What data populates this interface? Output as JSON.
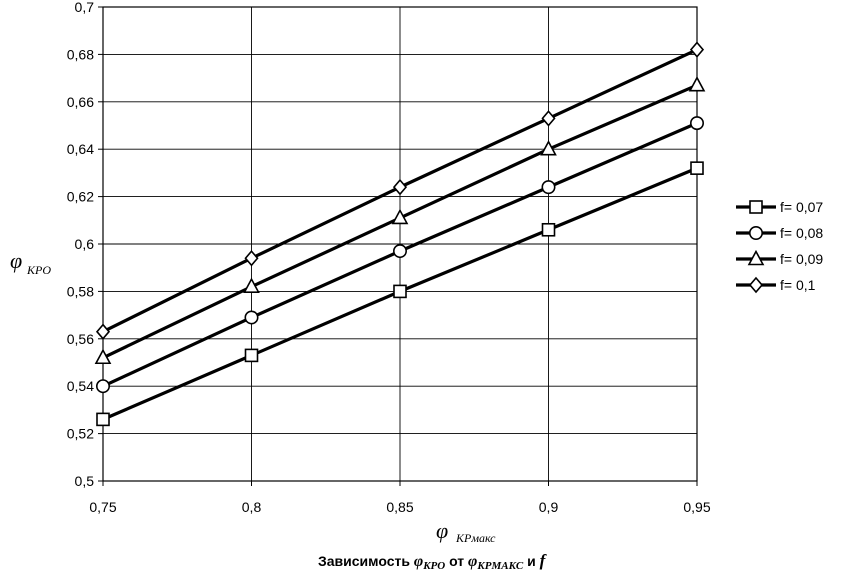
{
  "chart_data": {
    "type": "line",
    "x": [
      0.75,
      0.8,
      0.85,
      0.9,
      0.95
    ],
    "x_tick_labels": [
      "0,75",
      "0,8",
      "0,85",
      "0,9",
      "0,95"
    ],
    "y_tick_labels": [
      "0,5",
      "0,52",
      "0,54",
      "0,56",
      "0,58",
      "0,6",
      "0,62",
      "0,64",
      "0,66",
      "0,68",
      "0,7"
    ],
    "y_ticks": [
      0.5,
      0.52,
      0.54,
      0.56,
      0.58,
      0.6,
      0.62,
      0.64,
      0.66,
      0.68,
      0.7
    ],
    "xlim": [
      0.75,
      0.95
    ],
    "ylim": [
      0.5,
      0.7
    ],
    "grid": true,
    "legend_position": "right",
    "ylabel": {
      "symbol": "φ",
      "sub": "KPO"
    },
    "xlabel": {
      "symbol": "φ",
      "sub": "KPмакс"
    },
    "caption": {
      "prefix": "Зависимость ",
      "phi1": "φ",
      "sub1": "KPO",
      "middle": " от ",
      "phi2": "φ",
      "sub2": "KPMAKC",
      "and": " и ",
      "f": "f"
    },
    "series": [
      {
        "name": "f= 0,07",
        "marker": "square",
        "values": [
          0.526,
          0.553,
          0.58,
          0.606,
          0.632
        ]
      },
      {
        "name": "f= 0,08",
        "marker": "circle",
        "values": [
          0.54,
          0.569,
          0.597,
          0.624,
          0.651
        ]
      },
      {
        "name": "f= 0,09",
        "marker": "triangle",
        "values": [
          0.552,
          0.582,
          0.611,
          0.64,
          0.667
        ]
      },
      {
        "name": "f= 0,1",
        "marker": "diamond",
        "values": [
          0.563,
          0.594,
          0.624,
          0.653,
          0.682
        ]
      }
    ]
  }
}
